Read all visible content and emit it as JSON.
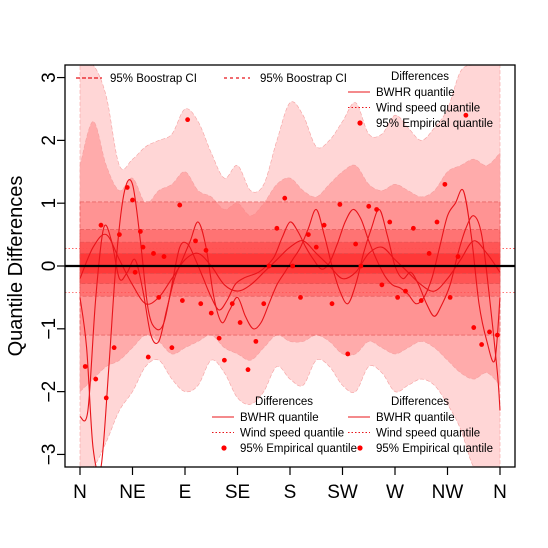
{
  "chart_data": {
    "type": "line",
    "ylabel": "Quantile Differences",
    "xlabel": "",
    "title": "",
    "ylim": [
      -3.2,
      3.2
    ],
    "xlim": [
      0,
      16
    ],
    "x_ticks": [
      {
        "value": 0,
        "label": "N"
      },
      {
        "value": 2,
        "label": "NE"
      },
      {
        "value": 4,
        "label": "E"
      },
      {
        "value": 6,
        "label": "SE"
      },
      {
        "value": 8,
        "label": "S"
      },
      {
        "value": 10,
        "label": "SW"
      },
      {
        "value": 12,
        "label": "W"
      },
      {
        "value": 14,
        "label": "NW"
      },
      {
        "value": 16,
        "label": "N"
      }
    ],
    "y_ticks": [
      -3,
      -2,
      -1,
      0,
      1,
      2,
      3
    ],
    "zero_line": 0,
    "dotted_reference_lines": [
      0.28,
      -0.42
    ],
    "horizontal_bands": [
      {
        "name": "band-outer",
        "lo": -1.1,
        "hi": 1.02
      },
      {
        "name": "band-middle",
        "lo": -0.48,
        "hi": 0.58
      },
      {
        "name": "band-inner",
        "lo": -0.28,
        "hi": 0.38
      },
      {
        "name": "band-core",
        "lo": -0.12,
        "hi": 0.2
      }
    ],
    "ci_outer": {
      "x": [
        0,
        0.5,
        1,
        1.5,
        2,
        2.5,
        3,
        3.5,
        4,
        4.5,
        5,
        5.5,
        6,
        6.5,
        7,
        7.5,
        8,
        8.5,
        9,
        9.5,
        10,
        10.5,
        11,
        11.5,
        12,
        12.5,
        13,
        13.5,
        14,
        14.5,
        15,
        15.5,
        16
      ],
      "upper": [
        3.2,
        3.2,
        2.7,
        1.6,
        1.7,
        1.9,
        2.0,
        2.1,
        2.5,
        2.3,
        1.8,
        1.4,
        1.6,
        1.2,
        1.3,
        2.0,
        2.6,
        2.4,
        1.9,
        2.0,
        2.3,
        2.6,
        2.1,
        2.1,
        2.4,
        2.2,
        2.0,
        2.2,
        2.5,
        3.1,
        3.2,
        3.2,
        3.2
      ],
      "lower": [
        -3.2,
        -3.2,
        -2.8,
        -2.3,
        -2.0,
        -1.6,
        -1.5,
        -1.8,
        -2.0,
        -1.9,
        -1.5,
        -1.7,
        -2.1,
        -2.2,
        -2.0,
        -1.6,
        -1.8,
        -1.9,
        -1.5,
        -1.6,
        -1.9,
        -2.0,
        -1.6,
        -1.7,
        -2.0,
        -1.9,
        -1.8,
        -1.9,
        -2.2,
        -2.6,
        -3.2,
        -3.2,
        -3.2
      ]
    },
    "ci_inner": {
      "x": [
        0,
        0.5,
        1,
        1.5,
        2,
        2.5,
        3,
        3.5,
        4,
        4.5,
        5,
        5.5,
        6,
        6.5,
        7,
        7.5,
        8,
        8.5,
        9,
        9.5,
        10,
        10.5,
        11,
        11.5,
        12,
        12.5,
        13,
        13.5,
        14,
        14.5,
        15,
        15.5,
        16
      ],
      "upper": [
        1.6,
        2.3,
        1.6,
        1.2,
        1.4,
        1.0,
        1.2,
        1.3,
        1.5,
        1.2,
        1.1,
        0.9,
        1.0,
        0.8,
        1.0,
        1.3,
        1.4,
        1.2,
        1.1,
        1.3,
        1.5,
        1.6,
        1.3,
        1.2,
        1.3,
        1.2,
        1.1,
        1.2,
        1.5,
        1.6,
        1.7,
        1.6,
        1.8
      ],
      "lower": [
        -2.0,
        -1.8,
        -1.6,
        -1.5,
        -1.3,
        -1.1,
        -1.2,
        -1.4,
        -1.3,
        -1.2,
        -1.1,
        -1.3,
        -1.4,
        -1.5,
        -1.3,
        -1.1,
        -1.2,
        -1.2,
        -1.1,
        -1.2,
        -1.4,
        -1.4,
        -1.2,
        -1.3,
        -1.4,
        -1.3,
        -1.2,
        -1.3,
        -1.5,
        -1.7,
        -1.8,
        -1.7,
        -1.9
      ]
    },
    "series": [
      {
        "x": [
          0,
          0.25,
          0.5,
          0.8,
          1.1,
          1.4,
          1.7,
          2.0,
          2.3,
          2.6,
          2.9,
          3.2,
          3.5,
          3.8,
          4.1,
          4.4,
          4.7,
          5.0,
          5.3,
          5.6,
          5.9,
          6.2,
          6.5,
          6.8,
          7.1,
          7.4,
          7.7,
          8.0,
          8.3,
          8.6,
          8.9,
          9.2,
          9.5,
          9.8,
          10.1,
          10.4,
          10.7,
          11.0,
          11.3,
          11.6,
          11.9,
          12.2,
          12.5,
          12.8,
          13.1,
          13.4,
          13.7,
          14.0,
          14.3,
          14.6,
          14.9,
          15.2,
          15.5,
          15.8,
          16.0
        ],
        "y": [
          -0.5,
          -1.3,
          -2.9,
          -3.2,
          -1.6,
          0.2,
          1.2,
          1.3,
          0.4,
          -0.7,
          -1.0,
          -0.9,
          -0.3,
          0.3,
          0.35,
          0.1,
          -0.2,
          -0.5,
          -0.7,
          -0.55,
          -0.3,
          -0.2,
          -0.15,
          -0.1,
          0.0,
          0.15,
          0.45,
          0.7,
          0.55,
          0.3,
          0.1,
          -0.05,
          0.05,
          0.35,
          0.7,
          0.9,
          0.75,
          0.4,
          0.1,
          -0.15,
          -0.3,
          -0.35,
          -0.45,
          -0.6,
          -0.5,
          -0.2,
          0.3,
          0.8,
          1.0,
          1.2,
          0.5,
          -0.6,
          -1.2,
          -1.5,
          -0.5
        ]
      },
      {
        "x": [
          0,
          0.3,
          0.6,
          0.9,
          1.2,
          1.5,
          1.8,
          2.1,
          2.4,
          2.7,
          3.0,
          3.3,
          3.6,
          3.9,
          4.2,
          4.5,
          4.8,
          5.1,
          5.4,
          5.7,
          6.0,
          6.3,
          6.6,
          6.9,
          7.2,
          7.5,
          7.8,
          8.1,
          8.4,
          8.7,
          9.0,
          9.3,
          9.6,
          9.9,
          10.2,
          10.5,
          10.8,
          11.1,
          11.4,
          11.7,
          12.0,
          12.3,
          12.6,
          12.9,
          13.2,
          13.5,
          13.8,
          14.1,
          14.4,
          14.7,
          15.0,
          15.3,
          15.6,
          15.9,
          16.0
        ],
        "y": [
          -2.4,
          -2.3,
          -0.5,
          0.6,
          0.4,
          -0.2,
          -0.1,
          0.1,
          -0.4,
          -1.1,
          -1.2,
          -0.7,
          -0.2,
          0.1,
          0.4,
          0.7,
          0.3,
          -0.5,
          -0.9,
          -0.7,
          -0.5,
          -0.8,
          -1.0,
          -0.9,
          -0.6,
          -0.3,
          -0.1,
          0.1,
          0.3,
          0.6,
          0.9,
          0.5,
          0.0,
          -0.4,
          -0.6,
          -0.3,
          0.2,
          0.6,
          0.9,
          0.5,
          0.0,
          -0.2,
          -0.1,
          -0.3,
          -0.6,
          -0.8,
          -0.6,
          -0.3,
          0.2,
          0.6,
          0.8,
          0.5,
          -0.5,
          -1.7,
          -2.3
        ]
      },
      {
        "x": [
          0,
          0.5,
          1.0,
          1.5,
          2.0,
          2.5,
          3.0,
          3.5,
          4.0,
          4.5,
          5.0,
          5.5,
          6.0,
          6.5,
          7.0,
          7.5,
          8.0,
          8.5,
          9.0,
          9.5,
          10.0,
          10.5,
          11.0,
          11.5,
          12.0,
          12.5,
          13.0,
          13.5,
          14.0,
          14.5,
          15.0,
          15.5,
          16.0
        ],
        "y": [
          -0.2,
          0.3,
          0.5,
          0.1,
          -0.3,
          -0.6,
          -0.5,
          -0.2,
          0.1,
          0.2,
          0.0,
          -0.3,
          -0.4,
          -0.3,
          -0.1,
          0.1,
          0.3,
          0.4,
          0.2,
          0.0,
          -0.2,
          -0.1,
          0.2,
          0.3,
          0.1,
          -0.1,
          -0.3,
          -0.4,
          -0.2,
          0.1,
          0.4,
          0.2,
          -0.1
        ]
      }
    ],
    "points": {
      "x": [
        0.2,
        0.6,
        0.8,
        1.0,
        1.3,
        1.5,
        1.8,
        2.0,
        2.1,
        2.3,
        2.4,
        2.6,
        2.8,
        3.0,
        3.2,
        3.5,
        3.8,
        3.9,
        4.1,
        4.4,
        4.6,
        4.8,
        5.0,
        5.3,
        5.5,
        5.8,
        6.1,
        6.4,
        6.7,
        7.0,
        7.2,
        7.5,
        7.8,
        8.1,
        8.4,
        8.7,
        9.0,
        9.3,
        9.6,
        9.9,
        10.2,
        10.5,
        10.7,
        11.0,
        11.3,
        11.5,
        11.8,
        12.1,
        12.4,
        12.7,
        13.0,
        13.3,
        13.6,
        13.9,
        14.1,
        14.4,
        14.7,
        15.0,
        15.3,
        15.6,
        15.9
      ],
      "y": [
        -1.6,
        -1.8,
        0.65,
        -2.1,
        -1.3,
        0.5,
        1.25,
        1.05,
        -0.1,
        0.55,
        0.3,
        -1.45,
        0.2,
        -0.5,
        0.15,
        -1.3,
        0.97,
        -0.55,
        2.33,
        0.4,
        -0.6,
        0.25,
        -0.75,
        -1.15,
        -1.5,
        -0.6,
        -0.9,
        -1.65,
        -1.2,
        -0.6,
        0.0,
        0.6,
        1.08,
        0.0,
        -0.5,
        0.5,
        0.3,
        0.65,
        -0.6,
        0.98,
        -1.4,
        0.35,
        0.0,
        0.95,
        0.9,
        -0.3,
        0.7,
        -0.5,
        -0.4,
        0.6,
        -0.55,
        0.2,
        0.7,
        1.3,
        -0.5,
        0.15,
        2.4,
        -0.98,
        -1.25,
        -1.05,
        -1.1
      ]
    },
    "legends": [
      {
        "name": "legend-top-ci",
        "placement": "top-left",
        "entries": [
          {
            "label": "95% Boostrap CI",
            "style": "dashed"
          },
          {
            "label": "95% Boostrap CI",
            "style": "dashed"
          }
        ]
      },
      {
        "name": "legend-top-right",
        "placement": "top-right",
        "title": "Differences",
        "entries": [
          {
            "label": "BWHR quantile",
            "style": "solid"
          },
          {
            "label": "Wind speed quantile",
            "style": "dotted"
          },
          {
            "label": "95% Empirical quantile",
            "style": "point"
          }
        ]
      },
      {
        "name": "legend-bottom-center",
        "placement": "bottom-center",
        "title": "Differences",
        "entries": [
          {
            "label": "BWHR quantile",
            "style": "solid"
          },
          {
            "label": "Wind speed quantile",
            "style": "dotted"
          },
          {
            "label": "95% Empirical quantile",
            "style": "point"
          }
        ]
      },
      {
        "name": "legend-bottom-right",
        "placement": "bottom-right",
        "title": "Differences",
        "entries": [
          {
            "label": "BWHR quantile",
            "style": "solid"
          },
          {
            "label": "Wind speed quantile",
            "style": "dotted"
          },
          {
            "label": "95% Empirical quantile",
            "style": "point"
          }
        ]
      }
    ],
    "colors": {
      "series": "#e8141a",
      "points": "#ff0000",
      "ci_outer": "#ffd6d6",
      "ci_inner": "#ffabab",
      "band_outer": "#ff8080",
      "band_middle": "#ff5a5a",
      "band_inner": "#ff3c3c",
      "band_core": "#ff2020",
      "zero_line": "#000000"
    }
  }
}
